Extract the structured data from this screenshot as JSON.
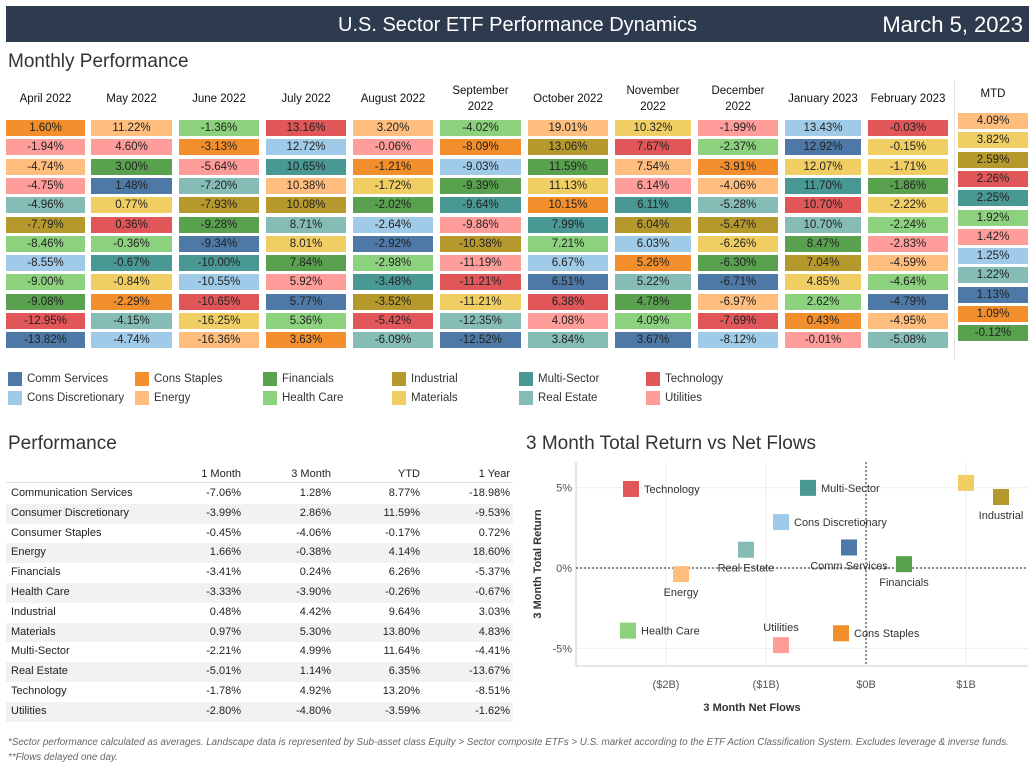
{
  "header": {
    "title": "U.S. Sector ETF Performance Dynamics",
    "date": "March 5, 2023"
  },
  "monthly": {
    "title": "Monthly Performance",
    "months": [
      {
        "label": [
          "April 2022"
        ],
        "cells": [
          [
            "1.60%",
            "Cons Staples"
          ],
          [
            "-1.94%",
            "Utilities"
          ],
          [
            "-4.74%",
            "Energy"
          ],
          [
            "-4.75%",
            "Utilities"
          ],
          [
            "-4.96%",
            "Real Estate"
          ],
          [
            "-7.79%",
            "Industrial"
          ],
          [
            "-8.46%",
            "Health Care"
          ],
          [
            "-8.55%",
            "Cons Discretionary"
          ],
          [
            "-9.00%",
            "Health Care"
          ],
          [
            "-9.08%",
            "Financials"
          ],
          [
            "-12.95%",
            "Technology"
          ],
          [
            "-13.82%",
            "Comm Services"
          ]
        ]
      },
      {
        "label": [
          "May 2022"
        ],
        "cells": [
          [
            "11.22%",
            "Energy"
          ],
          [
            "4.60%",
            "Utilities"
          ],
          [
            "3.00%",
            "Financials"
          ],
          [
            "1.48%",
            "Comm Services"
          ],
          [
            "0.77%",
            "Materials"
          ],
          [
            "0.36%",
            "Technology"
          ],
          [
            "-0.36%",
            "Health Care"
          ],
          [
            "-0.67%",
            "Multi-Sector"
          ],
          [
            "-0.84%",
            "Materials"
          ],
          [
            "-2.29%",
            "Cons Staples"
          ],
          [
            "-4.15%",
            "Real Estate"
          ],
          [
            "-4.74%",
            "Cons Discretionary"
          ]
        ]
      },
      {
        "label": [
          "June 2022"
        ],
        "cells": [
          [
            "-1.36%",
            "Health Care"
          ],
          [
            "-3.13%",
            "Cons Staples"
          ],
          [
            "-5.64%",
            "Utilities"
          ],
          [
            "-7.20%",
            "Real Estate"
          ],
          [
            "-7.93%",
            "Industrial"
          ],
          [
            "-9.28%",
            "Financials"
          ],
          [
            "-9.34%",
            "Comm Services"
          ],
          [
            "-10.00%",
            "Multi-Sector"
          ],
          [
            "-10.55%",
            "Cons Discretionary"
          ],
          [
            "-10.65%",
            "Technology"
          ],
          [
            "-16.25%",
            "Materials"
          ],
          [
            "-16.36%",
            "Energy"
          ]
        ]
      },
      {
        "label": [
          "July 2022"
        ],
        "cells": [
          [
            "13.16%",
            "Technology"
          ],
          [
            "12.72%",
            "Cons Discretionary"
          ],
          [
            "10.65%",
            "Multi-Sector"
          ],
          [
            "10.38%",
            "Energy"
          ],
          [
            "10.08%",
            "Industrial"
          ],
          [
            "8.71%",
            "Real Estate"
          ],
          [
            "8.01%",
            "Materials"
          ],
          [
            "7.84%",
            "Financials"
          ],
          [
            "5.92%",
            "Utilities"
          ],
          [
            "5.77%",
            "Comm Services"
          ],
          [
            "5.36%",
            "Health Care"
          ],
          [
            "3.63%",
            "Cons Staples"
          ]
        ]
      },
      {
        "label": [
          "August 2022"
        ],
        "cells": [
          [
            "3.20%",
            "Energy"
          ],
          [
            "-0.06%",
            "Utilities"
          ],
          [
            "-1.21%",
            "Cons Staples"
          ],
          [
            "-1.72%",
            "Materials"
          ],
          [
            "-2.02%",
            "Financials"
          ],
          [
            "-2.64%",
            "Cons Discretionary"
          ],
          [
            "-2.92%",
            "Comm Services"
          ],
          [
            "-2.98%",
            "Health Care"
          ],
          [
            "-3.48%",
            "Multi-Sector"
          ],
          [
            "-3.52%",
            "Industrial"
          ],
          [
            "-5.42%",
            "Technology"
          ],
          [
            "-6.09%",
            "Real Estate"
          ]
        ]
      },
      {
        "label": [
          "September",
          "2022"
        ],
        "cells": [
          [
            "-4.02%",
            "Health Care"
          ],
          [
            "-8.09%",
            "Cons Staples"
          ],
          [
            "-9.03%",
            "Cons Discretionary"
          ],
          [
            "-9.39%",
            "Financials"
          ],
          [
            "-9.64%",
            "Multi-Sector"
          ],
          [
            "-9.86%",
            "Utilities"
          ],
          [
            "-10.38%",
            "Industrial"
          ],
          [
            "-11.19%",
            "Utilities"
          ],
          [
            "-11.21%",
            "Technology"
          ],
          [
            "-11.21%",
            "Materials"
          ],
          [
            "-12.35%",
            "Real Estate"
          ],
          [
            "-12.52%",
            "Comm Services"
          ]
        ]
      },
      {
        "label": [
          "October 2022"
        ],
        "cells": [
          [
            "19.01%",
            "Energy"
          ],
          [
            "13.06%",
            "Industrial"
          ],
          [
            "11.59%",
            "Financials"
          ],
          [
            "11.13%",
            "Materials"
          ],
          [
            "10.15%",
            "Cons Staples"
          ],
          [
            "7.99%",
            "Multi-Sector"
          ],
          [
            "7.21%",
            "Health Care"
          ],
          [
            "6.67%",
            "Cons Discretionary"
          ],
          [
            "6.51%",
            "Comm Services"
          ],
          [
            "6.38%",
            "Technology"
          ],
          [
            "4.08%",
            "Utilities"
          ],
          [
            "3.84%",
            "Real Estate"
          ]
        ]
      },
      {
        "label": [
          "November",
          "2022"
        ],
        "cells": [
          [
            "10.32%",
            "Materials"
          ],
          [
            "7.67%",
            "Technology"
          ],
          [
            "7.54%",
            "Energy"
          ],
          [
            "6.14%",
            "Utilities"
          ],
          [
            "6.11%",
            "Multi-Sector"
          ],
          [
            "6.04%",
            "Industrial"
          ],
          [
            "6.03%",
            "Cons Discretionary"
          ],
          [
            "5.26%",
            "Cons Staples"
          ],
          [
            "5.22%",
            "Real Estate"
          ],
          [
            "4.78%",
            "Financials"
          ],
          [
            "4.09%",
            "Health Care"
          ],
          [
            "3.67%",
            "Comm Services"
          ]
        ]
      },
      {
        "label": [
          "December",
          "2022"
        ],
        "cells": [
          [
            "-1.99%",
            "Utilities"
          ],
          [
            "-2.37%",
            "Health Care"
          ],
          [
            "-3.91%",
            "Cons Staples"
          ],
          [
            "-4.06%",
            "Energy"
          ],
          [
            "-5.28%",
            "Real Estate"
          ],
          [
            "-5.47%",
            "Industrial"
          ],
          [
            "-6.26%",
            "Materials"
          ],
          [
            "-6.30%",
            "Financials"
          ],
          [
            "-6.71%",
            "Comm Services"
          ],
          [
            "-6.97%",
            "Energy"
          ],
          [
            "-7.69%",
            "Technology"
          ],
          [
            "-8.12%",
            "Cons Discretionary"
          ]
        ]
      },
      {
        "label": [
          "January 2023"
        ],
        "cells": [
          [
            "13.43%",
            "Cons Discretionary"
          ],
          [
            "12.92%",
            "Comm Services"
          ],
          [
            "12.07%",
            "Materials"
          ],
          [
            "11.70%",
            "Multi-Sector"
          ],
          [
            "10.70%",
            "Technology"
          ],
          [
            "10.70%",
            "Real Estate"
          ],
          [
            "8.47%",
            "Financials"
          ],
          [
            "7.04%",
            "Industrial"
          ],
          [
            "4.85%",
            "Materials"
          ],
          [
            "2.62%",
            "Health Care"
          ],
          [
            "0.43%",
            "Cons Staples"
          ],
          [
            "-0.01%",
            "Utilities"
          ]
        ]
      },
      {
        "label": [
          "February 2023"
        ],
        "cells": [
          [
            "-0.03%",
            "Technology"
          ],
          [
            "-0.15%",
            "Materials"
          ],
          [
            "-1.71%",
            "Materials"
          ],
          [
            "-1.86%",
            "Financials"
          ],
          [
            "-2.22%",
            "Materials"
          ],
          [
            "-2.24%",
            "Health Care"
          ],
          [
            "-2.83%",
            "Utilities"
          ],
          [
            "-4.59%",
            "Energy"
          ],
          [
            "-4.64%",
            "Health Care"
          ],
          [
            "-4.79%",
            "Comm Services"
          ],
          [
            "-4.95%",
            "Energy"
          ],
          [
            "-5.08%",
            "Real Estate"
          ]
        ]
      },
      {
        "label": [
          "MTD"
        ],
        "cells": [
          [
            "4.09%",
            "Energy"
          ],
          [
            "3.82%",
            "Materials"
          ],
          [
            "2.59%",
            "Industrial"
          ],
          [
            "2.26%",
            "Technology"
          ],
          [
            "2.25%",
            "Multi-Sector"
          ],
          [
            "1.92%",
            "Health Care"
          ],
          [
            "1.42%",
            "Utilities"
          ],
          [
            "1.25%",
            "Cons Discretionary"
          ],
          [
            "1.22%",
            "Real Estate"
          ],
          [
            "1.13%",
            "Comm Services"
          ],
          [
            "1.09%",
            "Cons Staples"
          ],
          [
            "-0.12%",
            "Financials"
          ]
        ]
      }
    ]
  },
  "legend": [
    {
      "name": "Comm Services",
      "color": "#4e79a7"
    },
    {
      "name": "Cons Staples",
      "color": "#f28e2b"
    },
    {
      "name": "Financials",
      "color": "#59a14f"
    },
    {
      "name": "Industrial",
      "color": "#b6992d"
    },
    {
      "name": "Multi-Sector",
      "color": "#499894"
    },
    {
      "name": "Technology",
      "color": "#e15759"
    },
    {
      "name": "Cons Discretionary",
      "color": "#a0cbe8"
    },
    {
      "name": "Energy",
      "color": "#ffbe7d"
    },
    {
      "name": "Health Care",
      "color": "#8cd17d"
    },
    {
      "name": "Materials",
      "color": "#f1ce63"
    },
    {
      "name": "Real Estate",
      "color": "#86bcb6"
    },
    {
      "name": "Utilities",
      "color": "#ff9d9a"
    }
  ],
  "performance": {
    "title": "Performance",
    "columns": [
      "1 Month",
      "3 Month",
      "YTD",
      "1 Year"
    ],
    "rows": [
      {
        "name": "Communication Services",
        "values": [
          "-7.06%",
          "1.28%",
          "8.77%",
          "-18.98%"
        ]
      },
      {
        "name": "Consumer Discretionary",
        "values": [
          "-3.99%",
          "2.86%",
          "11.59%",
          "-9.53%"
        ]
      },
      {
        "name": "Consumer Staples",
        "values": [
          "-0.45%",
          "-4.06%",
          "-0.17%",
          "0.72%"
        ]
      },
      {
        "name": "Energy",
        "values": [
          "1.66%",
          "-0.38%",
          "4.14%",
          "18.60%"
        ]
      },
      {
        "name": "Financials",
        "values": [
          "-3.41%",
          "0.24%",
          "6.26%",
          "-5.37%"
        ]
      },
      {
        "name": "Health Care",
        "values": [
          "-3.33%",
          "-3.90%",
          "-0.26%",
          "-0.67%"
        ]
      },
      {
        "name": "Industrial",
        "values": [
          "0.48%",
          "4.42%",
          "9.64%",
          "3.03%"
        ]
      },
      {
        "name": "Materials",
        "values": [
          "0.97%",
          "5.30%",
          "13.80%",
          "4.83%"
        ]
      },
      {
        "name": "Multi-Sector",
        "values": [
          "-2.21%",
          "4.99%",
          "11.64%",
          "-4.41%"
        ]
      },
      {
        "name": "Real Estate",
        "values": [
          "-5.01%",
          "1.14%",
          "6.35%",
          "-13.67%"
        ]
      },
      {
        "name": "Technology",
        "values": [
          "-1.78%",
          "4.92%",
          "13.20%",
          "-8.51%"
        ]
      },
      {
        "name": "Utilities",
        "values": [
          "-2.80%",
          "-4.80%",
          "-3.59%",
          "-1.62%"
        ]
      }
    ]
  },
  "chart_data": {
    "type": "scatter",
    "title": "3 Month Total Return vs Net Flows",
    "xlabel": "3 Month Net Flows",
    "ylabel": "3 Month Total Return",
    "xlim": [
      -2.9,
      1.62
    ],
    "ylim": [
      -6.1,
      6.6
    ],
    "x_ticks": [
      {
        "v": -2,
        "label": "($2B)"
      },
      {
        "v": -1,
        "label": "($1B)"
      },
      {
        "v": 0,
        "label": "$0B"
      },
      {
        "v": 1,
        "label": "$1B"
      }
    ],
    "y_ticks": [
      {
        "v": 5,
        "label": "5%"
      },
      {
        "v": 0,
        "label": "0%"
      },
      {
        "v": -5,
        "label": "-5%"
      }
    ],
    "reference_lines": {
      "x": 0,
      "y": 0
    },
    "points": [
      {
        "name": "Technology",
        "x": -2.35,
        "y": 4.92,
        "color": "#e15759",
        "label_pos": "right"
      },
      {
        "name": "Multi-Sector",
        "x": -0.58,
        "y": 4.99,
        "color": "#499894",
        "label_pos": "right"
      },
      {
        "name": "Materials",
        "x": 1.0,
        "y": 5.3,
        "color": "#f1ce63",
        "label_pos": "none"
      },
      {
        "name": "Industrial",
        "x": 1.35,
        "y": 4.42,
        "color": "#b6992d",
        "label_pos": "below"
      },
      {
        "name": "Cons Discretionary",
        "x": -0.85,
        "y": 2.86,
        "color": "#a0cbe8",
        "label_pos": "right"
      },
      {
        "name": "Real Estate",
        "x": -1.2,
        "y": 1.14,
        "color": "#86bcb6",
        "label_pos": "below"
      },
      {
        "name": "Comm Services",
        "x": -0.17,
        "y": 1.28,
        "color": "#4e79a7",
        "label_pos": "below"
      },
      {
        "name": "Financials",
        "x": 0.38,
        "y": 0.24,
        "color": "#59a14f",
        "label_pos": "below"
      },
      {
        "name": "Energy",
        "x": -1.85,
        "y": -0.38,
        "color": "#ffbe7d",
        "label_pos": "below"
      },
      {
        "name": "Health Care",
        "x": -2.38,
        "y": -3.9,
        "color": "#8cd17d",
        "label_pos": "right"
      },
      {
        "name": "Utilities",
        "x": -0.85,
        "y": -4.8,
        "color": "#ff9d9a",
        "label_pos": "above"
      },
      {
        "name": "Cons Staples",
        "x": -0.25,
        "y": -4.06,
        "color": "#f28e2b",
        "label_pos": "right"
      }
    ]
  },
  "footnote": "*Sector performance calculated as averages. Landscape data is represented by Sub-asset class Equity > Sector composite ETFs > U.S. market according to the ETF Action Classification System. Excludes leverage & inverse funds. **Flows delayed one day."
}
